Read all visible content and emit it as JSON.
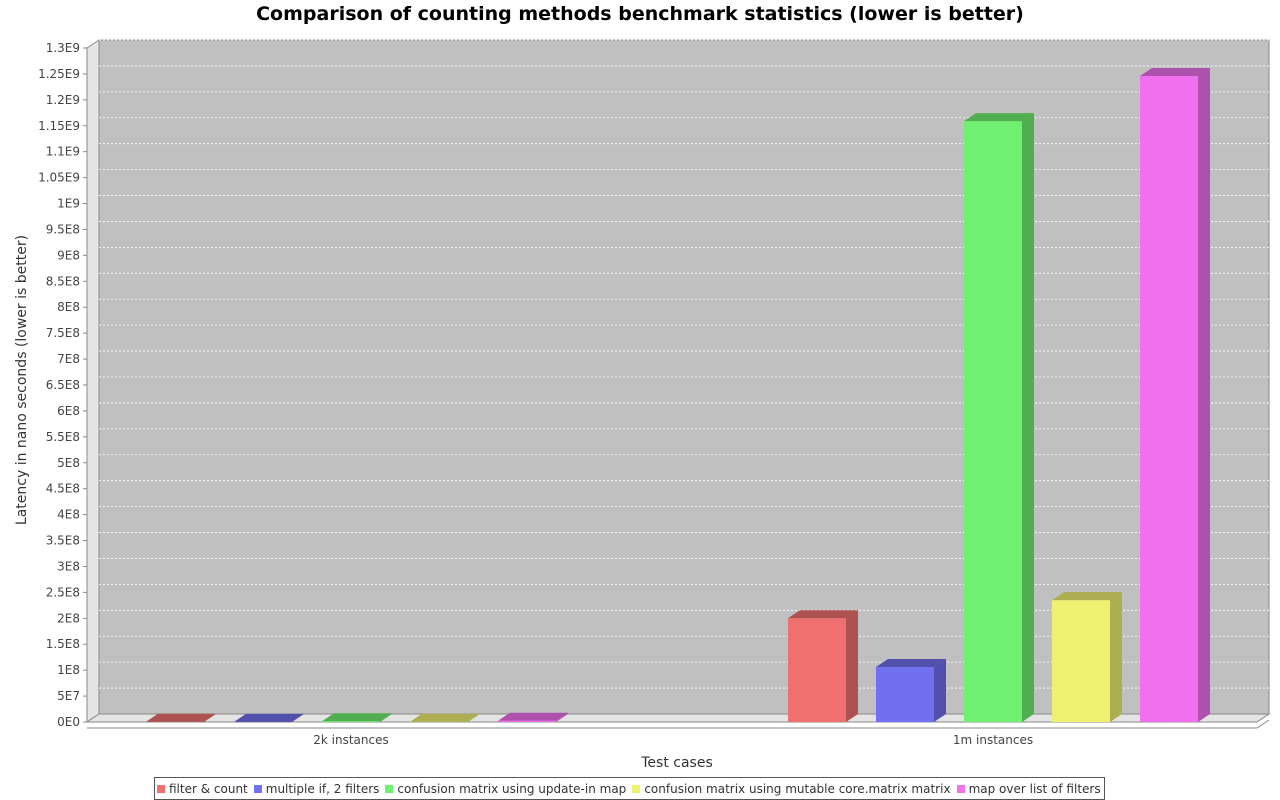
{
  "chart_data": {
    "type": "bar",
    "title": "Comparison of counting methods benchmark statistics (lower is better)",
    "xlabel": "Test cases",
    "ylabel": "Latency in nano seconds (lower is better)",
    "categories": [
      "2k instances",
      "1m instances"
    ],
    "ylim": [
      0,
      1300000000
    ],
    "y_ticks": [
      "0E0",
      "5E7",
      "1E8",
      "1.5E8",
      "2E8",
      "2.5E8",
      "3E8",
      "3.5E8",
      "4E8",
      "4.5E8",
      "5E8",
      "5.5E8",
      "6E8",
      "6.5E8",
      "7E8",
      "7.5E8",
      "8E8",
      "8.5E8",
      "9E8",
      "9.5E8",
      "1E9",
      "1.05E9",
      "1.1E9",
      "1.15E9",
      "1.2E9",
      "1.25E9",
      "1.3E9"
    ],
    "y_tick_values": [
      0,
      50000000,
      100000000,
      150000000,
      200000000,
      250000000,
      300000000,
      350000000,
      400000000,
      450000000,
      500000000,
      550000000,
      600000000,
      650000000,
      700000000,
      750000000,
      800000000,
      850000000,
      900000000,
      950000000,
      1000000000,
      1050000000,
      1100000000,
      1150000000,
      1200000000,
      1250000000,
      1300000000
    ],
    "grid": true,
    "legend_position": "bottom",
    "series": [
      {
        "name": "filter & count",
        "color": "#f07070",
        "values": [
          400000,
          200000000
        ]
      },
      {
        "name": "multiple if, 2 filters",
        "color": "#7070f0",
        "values": [
          200000,
          106000000
        ]
      },
      {
        "name": "confusion matrix using update-in map",
        "color": "#70f070",
        "values": [
          1500000,
          1159000000
        ]
      },
      {
        "name": "confusion matrix using mutable core.matrix matrix",
        "color": "#f0f070",
        "values": [
          600000,
          235000000
        ]
      },
      {
        "name": "map over list of filters",
        "color": "#f070f0",
        "values": [
          2500000,
          1246000000
        ]
      }
    ],
    "colors": {
      "plot_background": "#c0c0c0",
      "wall": "#e4e4e4",
      "grid": "#ffffff"
    }
  }
}
